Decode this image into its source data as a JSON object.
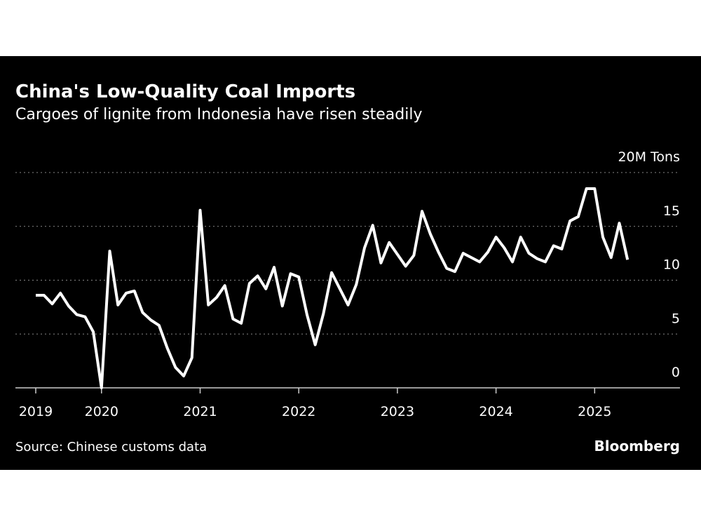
{
  "chart_data": {
    "type": "line",
    "title": "China's Low-Quality Coal Imports",
    "subtitle": "Cargoes of lignite from Indonesia have risen steadily",
    "source": "Source: Chinese customs data",
    "brand": "Bloomberg",
    "categories": [
      "2019",
      null,
      null,
      null,
      null,
      null,
      null,
      null,
      "2020",
      null,
      null,
      null,
      null,
      null,
      null,
      null,
      null,
      null,
      null,
      null,
      "2021",
      null,
      null,
      null,
      null,
      null,
      null,
      null,
      null,
      null,
      null,
      null,
      "2022",
      null,
      null,
      null,
      null,
      null,
      null,
      null,
      null,
      null,
      null,
      null,
      "2023",
      null,
      null,
      null,
      null,
      null,
      null,
      null,
      null,
      null,
      null,
      null,
      "2024",
      null,
      null,
      null,
      null,
      null,
      null,
      null,
      null,
      null,
      null,
      null,
      "2025",
      null,
      null,
      null,
      null
    ],
    "series": [
      {
        "color": "#ffffff",
        "values": [
          8.6,
          8.6,
          7.8,
          8.8,
          7.6,
          6.8,
          6.6,
          5.2,
          0,
          12.7,
          7.7,
          8.8,
          9.0,
          7.0,
          6.3,
          5.8,
          3.7,
          1.9,
          1.1,
          2.8,
          16.5,
          7.7,
          8.4,
          9.5,
          6.4,
          6.0,
          9.7,
          10.4,
          9.2,
          11.2,
          7.6,
          10.6,
          10.3,
          6.8,
          4.0,
          6.9,
          10.7,
          9.2,
          7.7,
          9.6,
          13.0,
          15.1,
          11.6,
          13.5,
          12.4,
          11.3,
          12.3,
          16.4,
          14.3,
          12.6,
          11.1,
          10.8,
          12.5,
          12.1,
          11.7,
          12.6,
          14.0,
          13.0,
          11.7,
          14.0,
          12.5,
          12.0,
          11.7,
          13.2,
          12.9,
          15.5,
          15.9,
          18.5,
          18.5,
          14.0,
          12.1,
          15.3,
          11.9
        ]
      }
    ],
    "ylim": [
      0,
      20
    ],
    "yticks": [
      0,
      5,
      10,
      15,
      {
        "value": 20,
        "label": "20M Tons"
      }
    ],
    "grid": true
  }
}
